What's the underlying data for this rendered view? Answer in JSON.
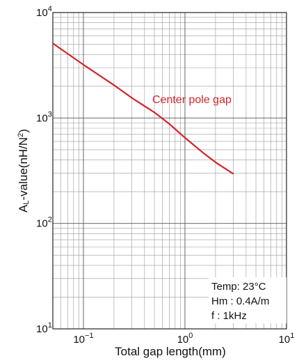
{
  "chart_data": {
    "type": "line",
    "title": "",
    "xlabel": "Total gap length(mm)",
    "ylabel_parts": {
      "prefix": "A",
      "sub": "L",
      "middle": "-value(nH/N",
      "sup": "2",
      "suffix": ")"
    },
    "xscale": "log",
    "yscale": "log",
    "xlim": [
      0.05,
      10
    ],
    "ylim": [
      10,
      10000
    ],
    "grid": true,
    "x_ticks": [
      {
        "value": 0.1,
        "base": "10",
        "exp": "−1"
      },
      {
        "value": 1,
        "base": "10",
        "exp": "0"
      },
      {
        "value": 10,
        "base": "10",
        "exp": "1"
      }
    ],
    "y_ticks": [
      {
        "value": 10,
        "base": "10",
        "exp": "1"
      },
      {
        "value": 100,
        "base": "10",
        "exp": "2"
      },
      {
        "value": 1000,
        "base": "10",
        "exp": "3"
      },
      {
        "value": 10000,
        "base": "10",
        "exp": "4"
      }
    ],
    "series": [
      {
        "name": "Center pole gap",
        "color": "#d2232a",
        "x": [
          0.05,
          0.1,
          0.2,
          0.3,
          0.5,
          0.7,
          1.0,
          1.5,
          2.0,
          3.0
        ],
        "y": [
          5100,
          3200,
          2050,
          1550,
          1130,
          880,
          650,
          470,
          380,
          295
        ]
      }
    ],
    "annotations": {
      "conditions": [
        "Temp: 23°C",
        "Hm : 0.4A/m",
        "f : 1kHz"
      ]
    }
  }
}
